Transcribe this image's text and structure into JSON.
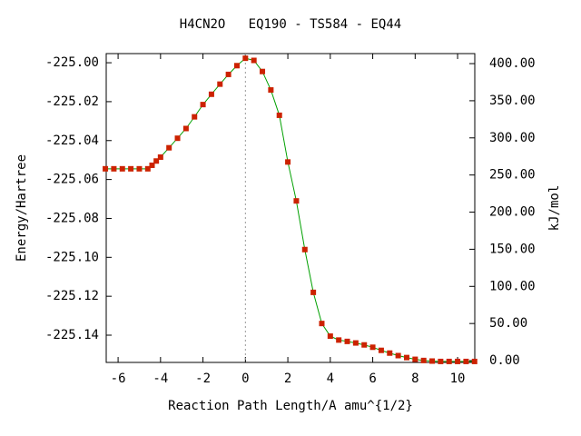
{
  "chart_data": {
    "type": "line",
    "title": "H4CN2O   EQ190 - TS584 - EQ44",
    "x_label": "Reaction Path Length/A amu^{1/2}",
    "y_label": "Energy/Hartree",
    "y2_label": "kJ/mol",
    "xlim": [
      -6.56,
      10.81
    ],
    "xticks": [
      -6,
      -4,
      -2,
      0,
      2,
      4,
      6,
      8,
      10
    ],
    "ylim": [
      -225.154,
      -224.9953
    ],
    "yticks": [
      {
        "value": -225.0,
        "label": "-225.00"
      },
      -225.02,
      -225.04,
      -225.06,
      -225.08,
      {
        "value": -225.1,
        "label": "-225.10"
      },
      -225.12,
      -225.14
    ],
    "y2lim": [
      -2.4,
      413.5
    ],
    "y2ticks": [
      {
        "value": 0,
        "label": "0.00"
      },
      {
        "value": 50,
        "label": "50.00"
      },
      {
        "value": 100,
        "label": "100.00"
      },
      {
        "value": 150,
        "label": "150.00"
      },
      {
        "value": 200,
        "label": "200.00"
      },
      {
        "value": 250,
        "label": "250.00"
      },
      {
        "value": 300,
        "label": "300.00"
      },
      {
        "value": 350,
        "label": "350.00"
      },
      {
        "value": 400,
        "label": "400.00"
      }
    ],
    "vline": 0,
    "line_color": "#00a000",
    "marker_color": "#cc2200",
    "x": [
      -6.6,
      -6.2,
      -5.8,
      -5.4,
      -5.0,
      -4.6,
      -4.4,
      -4.2,
      -4.0,
      -3.6,
      -3.2,
      -2.8,
      -2.4,
      -2.0,
      -1.6,
      -1.2,
      -0.8,
      -0.4,
      0,
      0.4,
      0.8,
      1.2,
      1.6,
      2.0,
      2.4,
      2.8,
      3.2,
      3.6,
      4.0,
      4.4,
      4.8,
      5.2,
      5.6,
      6.0,
      6.4,
      6.8,
      7.2,
      7.6,
      8.0,
      8.4,
      8.8,
      9.2,
      9.6,
      10.0,
      10.4,
      10.8
    ],
    "values": [
      -225.0545,
      -225.0545,
      -225.0545,
      -225.0545,
      -225.0545,
      -225.0545,
      -225.0527,
      -225.0505,
      -225.0485,
      -225.0437,
      -225.0388,
      -225.0338,
      -225.0278,
      -225.0215,
      -225.0162,
      -225.011,
      -225.006,
      -225.0015,
      -224.9977,
      -224.9988,
      -225.0045,
      -225.014,
      -225.027,
      -225.051,
      -225.071,
      -225.096,
      -225.118,
      -225.134,
      -225.1405,
      -225.1425,
      -225.1432,
      -225.144,
      -225.145,
      -225.1462,
      -225.1478,
      -225.1492,
      -225.1505,
      -225.1515,
      -225.1524,
      -225.153,
      -225.1533,
      -225.1535,
      -225.1535,
      -225.1535,
      -225.1535,
      -225.1535
    ]
  }
}
